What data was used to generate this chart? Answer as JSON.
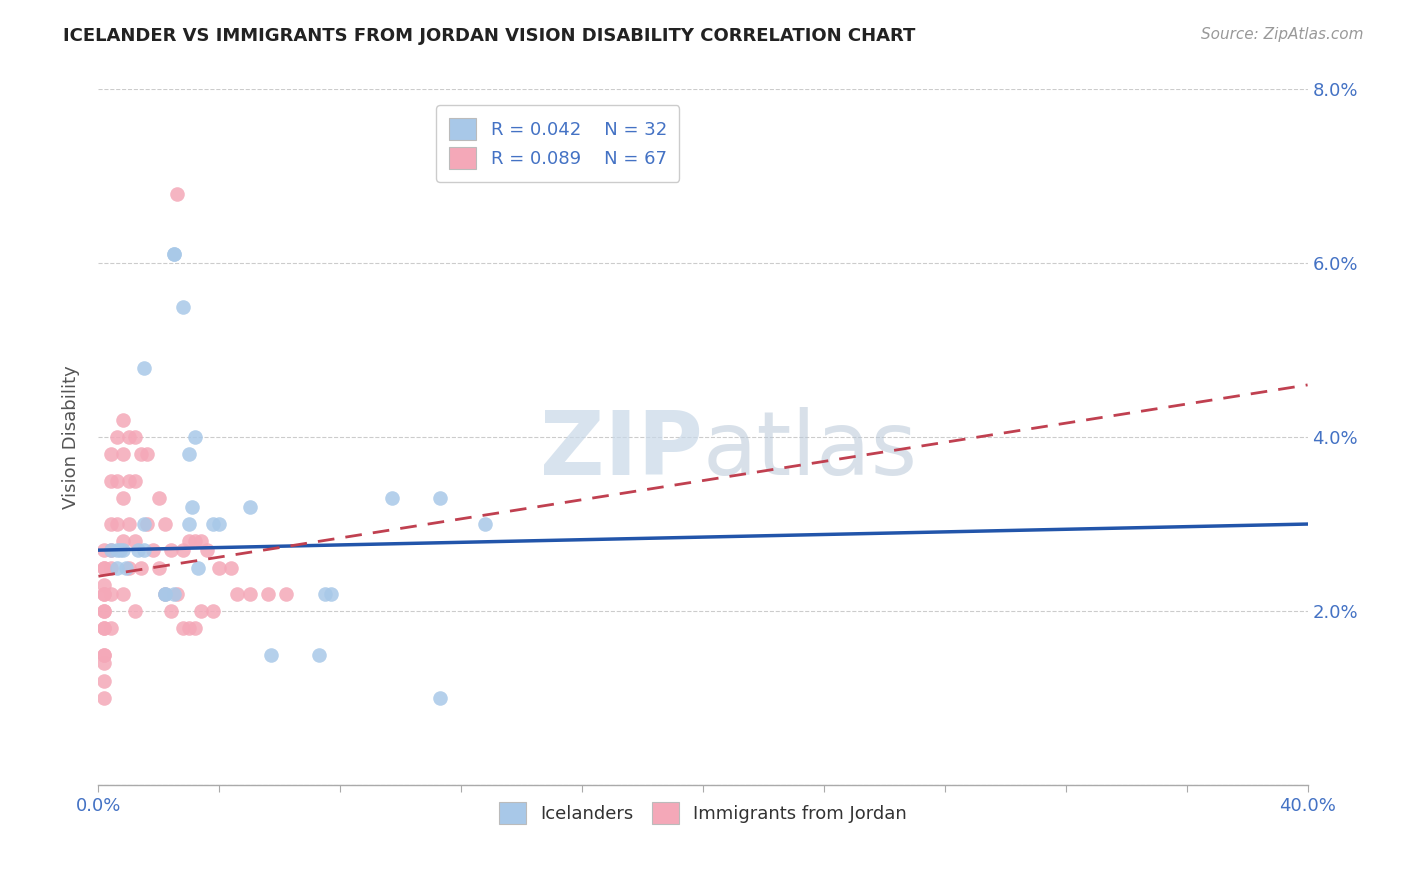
{
  "title": "ICELANDER VS IMMIGRANTS FROM JORDAN VISION DISABILITY CORRELATION CHART",
  "source": "Source: ZipAtlas.com",
  "ylabel": "Vision Disability",
  "xlim": [
    0,
    0.4
  ],
  "ylim": [
    0,
    0.08
  ],
  "xtick_vals": [
    0.0,
    0.04,
    0.08,
    0.12,
    0.16,
    0.2,
    0.24,
    0.28,
    0.32,
    0.36,
    0.4
  ],
  "xtick_labels_show": {
    "0.0": "0.0%",
    "0.40": "40.0%"
  },
  "ytick_vals": [
    0.0,
    0.02,
    0.04,
    0.06,
    0.08
  ],
  "ytick_labels": [
    "",
    "2.0%",
    "4.0%",
    "6.0%",
    "8.0%"
  ],
  "legend_label1": "Icelanders",
  "legend_label2": "Immigrants from Jordan",
  "R1": 0.042,
  "N1": 32,
  "R2": 0.089,
  "N2": 67,
  "color_blue": "#a8c8e8",
  "color_pink": "#f4a8b8",
  "color_blue_dark": "#4472c4",
  "color_pink_dark": "#c0404a",
  "color_trendline_blue": "#2255aa",
  "color_trendline_pink": "#c04050",
  "watermark_color": "#c8d8e8",
  "blue_x": [
    0.008,
    0.025,
    0.025,
    0.028,
    0.015,
    0.032,
    0.038,
    0.04,
    0.015,
    0.03,
    0.015,
    0.004,
    0.007,
    0.006,
    0.006,
    0.009,
    0.013,
    0.022,
    0.022,
    0.025,
    0.03,
    0.031,
    0.033,
    0.05,
    0.057,
    0.073,
    0.075,
    0.077,
    0.097,
    0.113,
    0.113,
    0.128
  ],
  "blue_y": [
    0.027,
    0.061,
    0.061,
    0.055,
    0.048,
    0.04,
    0.03,
    0.03,
    0.03,
    0.03,
    0.027,
    0.027,
    0.027,
    0.027,
    0.025,
    0.025,
    0.027,
    0.022,
    0.022,
    0.022,
    0.038,
    0.032,
    0.025,
    0.032,
    0.015,
    0.015,
    0.022,
    0.022,
    0.033,
    0.01,
    0.033,
    0.03
  ],
  "pink_x": [
    0.002,
    0.002,
    0.002,
    0.002,
    0.002,
    0.002,
    0.002,
    0.002,
    0.002,
    0.002,
    0.002,
    0.002,
    0.002,
    0.002,
    0.002,
    0.004,
    0.004,
    0.004,
    0.004,
    0.004,
    0.004,
    0.004,
    0.006,
    0.006,
    0.006,
    0.008,
    0.008,
    0.008,
    0.008,
    0.008,
    0.01,
    0.01,
    0.01,
    0.01,
    0.012,
    0.012,
    0.012,
    0.012,
    0.014,
    0.014,
    0.016,
    0.016,
    0.018,
    0.02,
    0.02,
    0.022,
    0.022,
    0.024,
    0.024,
    0.026,
    0.026,
    0.028,
    0.028,
    0.03,
    0.03,
    0.032,
    0.032,
    0.034,
    0.034,
    0.036,
    0.038,
    0.04,
    0.044,
    0.046,
    0.05,
    0.056,
    0.062
  ],
  "pink_y": [
    0.027,
    0.025,
    0.025,
    0.023,
    0.022,
    0.022,
    0.02,
    0.02,
    0.018,
    0.018,
    0.015,
    0.015,
    0.014,
    0.012,
    0.01,
    0.038,
    0.035,
    0.03,
    0.027,
    0.025,
    0.022,
    0.018,
    0.04,
    0.035,
    0.03,
    0.042,
    0.038,
    0.033,
    0.028,
    0.022,
    0.04,
    0.035,
    0.03,
    0.025,
    0.04,
    0.035,
    0.028,
    0.02,
    0.038,
    0.025,
    0.038,
    0.03,
    0.027,
    0.033,
    0.025,
    0.03,
    0.022,
    0.027,
    0.02,
    0.068,
    0.022,
    0.027,
    0.018,
    0.028,
    0.018,
    0.028,
    0.018,
    0.028,
    0.02,
    0.027,
    0.02,
    0.025,
    0.025,
    0.022,
    0.022,
    0.022,
    0.022
  ],
  "trendline_blue_x0": 0.0,
  "trendline_blue_y0": 0.027,
  "trendline_blue_x1": 0.4,
  "trendline_blue_y1": 0.03,
  "trendline_pink_x0": 0.0,
  "trendline_pink_y0": 0.024,
  "trendline_pink_x1": 0.4,
  "trendline_pink_y1": 0.046
}
